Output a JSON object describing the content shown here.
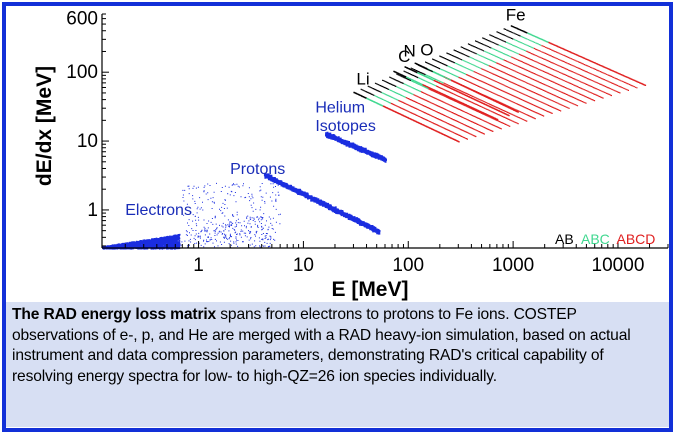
{
  "chart_data": {
    "type": "scatter",
    "title": "",
    "xlabel": "E [MeV]",
    "ylabel": "dE/dx [MeV]",
    "x_scale": "log",
    "y_scale": "log",
    "xlim": [
      0.12,
      30000
    ],
    "ylim": [
      0.28,
      700
    ],
    "x_ticks": [
      {
        "value": 1,
        "label": "1"
      },
      {
        "value": 10,
        "label": "10"
      },
      {
        "value": 100,
        "label": "100"
      },
      {
        "value": 1000,
        "label": "1000"
      },
      {
        "value": 10000,
        "label": "10000"
      }
    ],
    "y_ticks": [
      {
        "value": 1,
        "label": "1"
      },
      {
        "value": 10,
        "label": "10"
      },
      {
        "value": 100,
        "label": "100"
      },
      {
        "value": 600,
        "label": "600"
      }
    ],
    "grid": false,
    "series_labels": [
      {
        "text": "Electrons",
        "x": 0.2,
        "y": 0.85
      },
      {
        "text": "Protons",
        "x": 2.0,
        "y": 3.3
      },
      {
        "text": "Helium",
        "x": 13,
        "y": 26
      },
      {
        "text": "Isotopes",
        "x": 13,
        "y": 14
      },
      {
        "text": "Li",
        "x": 32,
        "y": 66
      },
      {
        "text": "C",
        "x": 80,
        "y": 140
      },
      {
        "text": "N",
        "x": 90,
        "y": 170
      },
      {
        "text": "O",
        "x": 130,
        "y": 175
      },
      {
        "text": "Fe",
        "x": 850,
        "y": 560
      }
    ],
    "legend": {
      "placement": "bottom-right",
      "entries": [
        {
          "text": "AB",
          "color": "#000000"
        },
        {
          "text": "ABC",
          "color": "#40d890"
        },
        {
          "text": "ABCD",
          "color": "#e02020"
        }
      ]
    },
    "tracks": [
      {
        "name": "Electrons",
        "kind": "blob",
        "color": "#1a2de0",
        "x_range": [
          0.15,
          0.65
        ],
        "y_range": [
          0.3,
          0.45
        ]
      },
      {
        "name": "Protons",
        "kind": "band",
        "color": "#1a2de0",
        "x_range": [
          4.2,
          52
        ],
        "y_start": 3.3,
        "y_end": 0.5
      },
      {
        "name": "Helium",
        "kind": "band",
        "color": "#1a2de0",
        "x_range": [
          16,
          60
        ],
        "y_start": 13,
        "y_end": 5.5
      },
      {
        "name": "Li",
        "kind": "stripe",
        "x_range": [
          30,
          300
        ],
        "y_start": 52,
        "y_end": 10
      },
      {
        "name": "C",
        "kind": "stripe",
        "x_range": [
          72,
          700
        ],
        "y_start": 105,
        "y_end": 21
      },
      {
        "name": "N",
        "kind": "stripe",
        "x_range": [
          92,
          900
        ],
        "y_start": 122,
        "y_end": 24
      },
      {
        "name": "O",
        "kind": "stripe",
        "x_range": [
          115,
          1100
        ],
        "y_start": 138,
        "y_end": 27
      },
      {
        "name": "Fe",
        "kind": "stripe",
        "x_range": [
          950,
          18000
        ],
        "y_start": 480,
        "y_end": 66
      }
    ]
  },
  "caption": {
    "bold_lead": "The RAD energy loss matrix",
    "text": " spans from electrons to protons to Fe ions. COSTEP observations of e-, p, and He are merged with a RAD heavy-ion simulation, based on actual instrument and data compression parameters, demonstrating RAD's critical capability of resolving energy spectra for low- to high-QZ=26 ion species individually."
  }
}
